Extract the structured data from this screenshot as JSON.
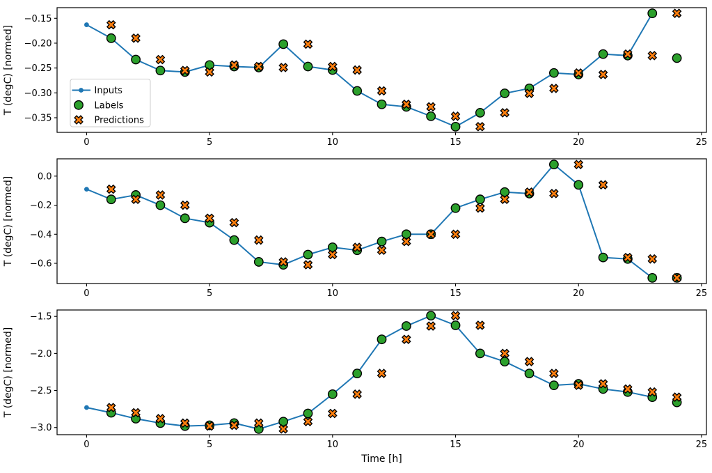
{
  "figure": {
    "xlabel": "Time [h]",
    "ylabel": "T (degC) [normed]",
    "colors": {
      "inputs": "#1f77b4",
      "labels": "#2ca02c",
      "predictions": "#ff7f0e",
      "marker_edge": "#000000",
      "spine": "#000000",
      "legend_border": "#cccccc",
      "background": "#ffffff"
    },
    "legend": {
      "items": [
        {
          "label": "Inputs",
          "type": "line"
        },
        {
          "label": "Labels",
          "type": "circle"
        },
        {
          "label": "Predictions",
          "type": "x"
        }
      ],
      "location": "upper-left-area-of-first-subplot"
    }
  },
  "chart_data": [
    {
      "type": "line",
      "subtype": "line-with-scatter-overlay",
      "title": "",
      "xlabel": "",
      "ylabel": "T (degC) [normed]",
      "xlim": [
        -1.2,
        25.2
      ],
      "ylim": [
        -0.3794,
        -0.1286
      ],
      "grid": false,
      "legend_visible": true,
      "xticks": [
        0,
        5,
        10,
        15,
        20,
        25
      ],
      "xtick_labels": [
        "0",
        "5",
        "10",
        "15",
        "20",
        "25"
      ],
      "yticks": [
        -0.15,
        -0.2,
        -0.25,
        -0.3,
        -0.35
      ],
      "ytick_labels": [
        "−0.15",
        "−0.20",
        "−0.25",
        "−0.30",
        "−0.35"
      ],
      "series": [
        {
          "name": "Inputs",
          "style": "line",
          "color": "#1f77b4",
          "x": [
            0,
            1,
            2,
            3,
            4,
            5,
            6,
            7,
            8,
            9,
            10,
            11,
            12,
            13,
            14,
            15,
            16,
            17,
            18,
            19,
            20,
            21,
            22,
            23
          ],
          "values": [
            -0.163,
            -0.19,
            -0.233,
            -0.255,
            -0.258,
            -0.244,
            -0.247,
            -0.249,
            -0.202,
            -0.247,
            -0.254,
            -0.296,
            -0.323,
            -0.328,
            -0.347,
            -0.368,
            -0.34,
            -0.301,
            -0.291,
            -0.26,
            -0.263,
            -0.222,
            -0.225,
            -0.14
          ]
        },
        {
          "name": "Labels",
          "style": "scatter-circle",
          "color": "#2ca02c",
          "x": [
            1,
            2,
            3,
            4,
            5,
            6,
            7,
            8,
            9,
            10,
            11,
            12,
            13,
            14,
            15,
            16,
            17,
            18,
            19,
            20,
            21,
            22,
            23,
            24
          ],
          "values": [
            -0.19,
            -0.233,
            -0.255,
            -0.258,
            -0.244,
            -0.247,
            -0.249,
            -0.202,
            -0.247,
            -0.254,
            -0.296,
            -0.323,
            -0.328,
            -0.347,
            -0.368,
            -0.34,
            -0.301,
            -0.291,
            -0.26,
            -0.263,
            -0.222,
            -0.225,
            -0.14,
            -0.23
          ]
        },
        {
          "name": "Predictions",
          "style": "scatter-x",
          "color": "#ff7f0e",
          "x": [
            1,
            2,
            3,
            4,
            5,
            6,
            7,
            8,
            9,
            10,
            11,
            12,
            13,
            14,
            15,
            16,
            17,
            18,
            19,
            20,
            21,
            22,
            23,
            24
          ],
          "values": [
            -0.163,
            -0.19,
            -0.233,
            -0.255,
            -0.258,
            -0.244,
            -0.247,
            -0.249,
            -0.202,
            -0.247,
            -0.254,
            -0.296,
            -0.323,
            -0.328,
            -0.347,
            -0.368,
            -0.34,
            -0.301,
            -0.291,
            -0.26,
            -0.263,
            -0.222,
            -0.225,
            -0.14
          ]
        }
      ]
    },
    {
      "type": "line",
      "subtype": "line-with-scatter-overlay",
      "title": "",
      "xlabel": "",
      "ylabel": "T (degC) [normed]",
      "xlim": [
        -1.2,
        25.2
      ],
      "ylim": [
        -0.739,
        0.119
      ],
      "grid": false,
      "legend_visible": false,
      "xticks": [
        0,
        5,
        10,
        15,
        20,
        25
      ],
      "xtick_labels": [
        "0",
        "5",
        "10",
        "15",
        "20",
        "25"
      ],
      "yticks": [
        0.0,
        -0.2,
        -0.4,
        -0.6
      ],
      "ytick_labels": [
        "0.0",
        "−0.2",
        "−0.4",
        "−0.6"
      ],
      "series": [
        {
          "name": "Inputs",
          "style": "line",
          "color": "#1f77b4",
          "x": [
            0,
            1,
            2,
            3,
            4,
            5,
            6,
            7,
            8,
            9,
            10,
            11,
            12,
            13,
            14,
            15,
            16,
            17,
            18,
            19,
            20,
            21,
            22,
            23
          ],
          "values": [
            -0.09,
            -0.16,
            -0.13,
            -0.2,
            -0.29,
            -0.32,
            -0.44,
            -0.59,
            -0.61,
            -0.54,
            -0.49,
            -0.51,
            -0.45,
            -0.4,
            -0.4,
            -0.22,
            -0.16,
            -0.11,
            -0.12,
            0.08,
            -0.06,
            -0.56,
            -0.57,
            -0.7
          ]
        },
        {
          "name": "Labels",
          "style": "scatter-circle",
          "color": "#2ca02c",
          "x": [
            1,
            2,
            3,
            4,
            5,
            6,
            7,
            8,
            9,
            10,
            11,
            12,
            13,
            14,
            15,
            16,
            17,
            18,
            19,
            20,
            21,
            22,
            23,
            24
          ],
          "values": [
            -0.16,
            -0.13,
            -0.2,
            -0.29,
            -0.32,
            -0.44,
            -0.59,
            -0.61,
            -0.54,
            -0.49,
            -0.51,
            -0.45,
            -0.4,
            -0.4,
            -0.22,
            -0.16,
            -0.11,
            -0.12,
            0.08,
            -0.06,
            -0.56,
            -0.57,
            -0.7,
            -0.7
          ]
        },
        {
          "name": "Predictions",
          "style": "scatter-x",
          "color": "#ff7f0e",
          "x": [
            1,
            2,
            3,
            4,
            5,
            6,
            7,
            8,
            9,
            10,
            11,
            12,
            13,
            14,
            15,
            16,
            17,
            18,
            19,
            20,
            21,
            22,
            23,
            24
          ],
          "values": [
            -0.09,
            -0.16,
            -0.13,
            -0.2,
            -0.29,
            -0.32,
            -0.44,
            -0.59,
            -0.61,
            -0.54,
            -0.49,
            -0.51,
            -0.45,
            -0.4,
            -0.4,
            -0.22,
            -0.16,
            -0.11,
            -0.12,
            0.08,
            -0.06,
            -0.56,
            -0.57,
            -0.7
          ]
        }
      ]
    },
    {
      "type": "line",
      "subtype": "line-with-scatter-overlay",
      "title": "",
      "xlabel": "Time [h]",
      "ylabel": "T (degC) [normed]",
      "xlim": [
        -1.2,
        25.2
      ],
      "ylim": [
        -3.0965,
        -1.4135
      ],
      "grid": false,
      "legend_visible": false,
      "xticks": [
        0,
        5,
        10,
        15,
        20,
        25
      ],
      "xtick_labels": [
        "0",
        "5",
        "10",
        "15",
        "20",
        "25"
      ],
      "yticks": [
        -1.5,
        -2.0,
        -2.5,
        -3.0
      ],
      "ytick_labels": [
        "−1.5",
        "−2.0",
        "−2.5",
        "−3.0"
      ],
      "series": [
        {
          "name": "Inputs",
          "style": "line",
          "color": "#1f77b4",
          "x": [
            0,
            1,
            2,
            3,
            4,
            5,
            6,
            7,
            8,
            9,
            10,
            11,
            12,
            13,
            14,
            15,
            16,
            17,
            18,
            19,
            20,
            21,
            22,
            23
          ],
          "values": [
            -2.73,
            -2.8,
            -2.88,
            -2.94,
            -2.98,
            -2.97,
            -2.94,
            -3.02,
            -2.92,
            -2.81,
            -2.55,
            -2.27,
            -1.81,
            -1.63,
            -1.49,
            -1.62,
            -2.0,
            -2.11,
            -2.27,
            -2.43,
            -2.41,
            -2.48,
            -2.52,
            -2.59
          ]
        },
        {
          "name": "Labels",
          "style": "scatter-circle",
          "color": "#2ca02c",
          "x": [
            1,
            2,
            3,
            4,
            5,
            6,
            7,
            8,
            9,
            10,
            11,
            12,
            13,
            14,
            15,
            16,
            17,
            18,
            19,
            20,
            21,
            22,
            23,
            24
          ],
          "values": [
            -2.8,
            -2.88,
            -2.94,
            -2.98,
            -2.97,
            -2.94,
            -3.02,
            -2.92,
            -2.81,
            -2.55,
            -2.27,
            -1.81,
            -1.63,
            -1.49,
            -1.62,
            -2.0,
            -2.11,
            -2.27,
            -2.43,
            -2.41,
            -2.48,
            -2.52,
            -2.59,
            -2.66
          ]
        },
        {
          "name": "Predictions",
          "style": "scatter-x",
          "color": "#ff7f0e",
          "x": [
            1,
            2,
            3,
            4,
            5,
            6,
            7,
            8,
            9,
            10,
            11,
            12,
            13,
            14,
            15,
            16,
            17,
            18,
            19,
            20,
            21,
            22,
            23,
            24
          ],
          "values": [
            -2.73,
            -2.8,
            -2.88,
            -2.94,
            -2.98,
            -2.97,
            -2.94,
            -3.02,
            -2.92,
            -2.81,
            -2.55,
            -2.27,
            -1.81,
            -1.63,
            -1.49,
            -1.62,
            -2.0,
            -2.11,
            -2.27,
            -2.43,
            -2.41,
            -2.48,
            -2.52,
            -2.59
          ]
        }
      ]
    }
  ]
}
